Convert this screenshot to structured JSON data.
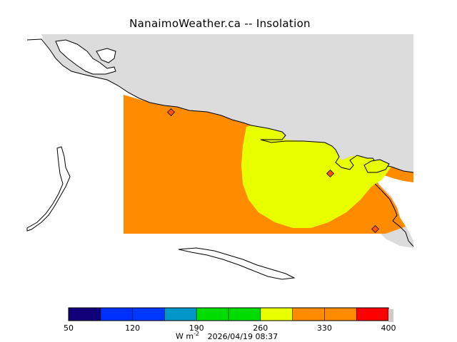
{
  "title": "NanaimoWeather.ca  --  Insolation",
  "colors": {
    "land": "#dcdcdc",
    "water": "#ffffff",
    "coast": "#000000",
    "field_orange": "#ff8c00",
    "field_yellow": "#e8ff00",
    "station_marker": "#ff5500"
  },
  "colorbar": {
    "ticks": [
      "50",
      "120",
      "190",
      "260",
      "330",
      "400"
    ],
    "range": [
      50,
      400
    ],
    "bins": [
      {
        "min": 50,
        "max": 85,
        "color": "#10007a"
      },
      {
        "min": 85,
        "max": 120,
        "color": "#0030ff"
      },
      {
        "min": 120,
        "max": 155,
        "color": "#0038ff"
      },
      {
        "min": 155,
        "max": 190,
        "color": "#0096c8"
      },
      {
        "min": 190,
        "max": 225,
        "color": "#00dc00"
      },
      {
        "min": 225,
        "max": 260,
        "color": "#00dc00"
      },
      {
        "min": 260,
        "max": 295,
        "color": "#e8ff00"
      },
      {
        "min": 295,
        "max": 330,
        "color": "#ff8c00"
      },
      {
        "min": 330,
        "max": 365,
        "color": "#ff8c00"
      },
      {
        "min": 365,
        "max": 400,
        "color": "#ff0000"
      }
    ]
  },
  "footer": {
    "units": "W m",
    "units_exp": "-2",
    "timestamp": "2026/04/19 08:37"
  }
}
